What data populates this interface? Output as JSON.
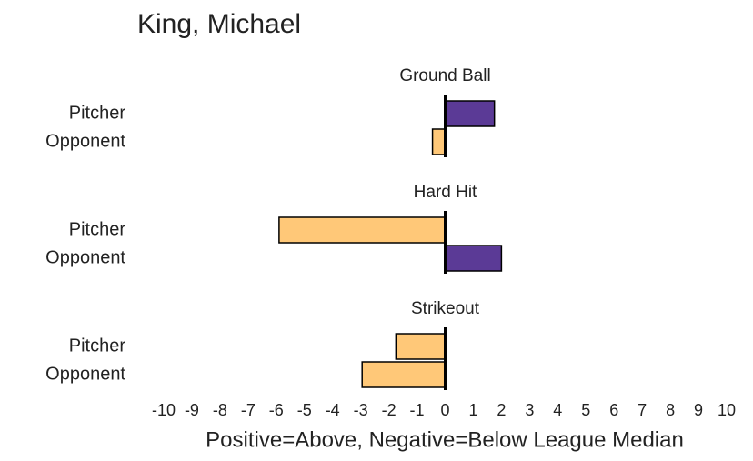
{
  "chart_data": {
    "type": "bar",
    "orientation": "horizontal",
    "title": "King, Michael",
    "xlabel": "Positive=Above, Negative=Below League Median",
    "positive_color": "#5b3a96",
    "negative_color": "#ffc878",
    "xlim": [
      -10,
      10
    ],
    "xticks": [
      -10,
      -9,
      -8,
      -7,
      -6,
      -5,
      -4,
      -3,
      -2,
      -1,
      0,
      1,
      2,
      3,
      4,
      5,
      6,
      7,
      8,
      9,
      10
    ],
    "panels": [
      {
        "title": "Ground Ball",
        "categories": [
          "Pitcher",
          "Opponent"
        ],
        "values": [
          1.75,
          -0.45
        ]
      },
      {
        "title": "Hard Hit",
        "categories": [
          "Pitcher",
          "Opponent"
        ],
        "values": [
          -5.9,
          2.0
        ]
      },
      {
        "title": "Strikeout",
        "categories": [
          "Pitcher",
          "Opponent"
        ],
        "values": [
          -1.75,
          -2.95
        ]
      }
    ]
  }
}
